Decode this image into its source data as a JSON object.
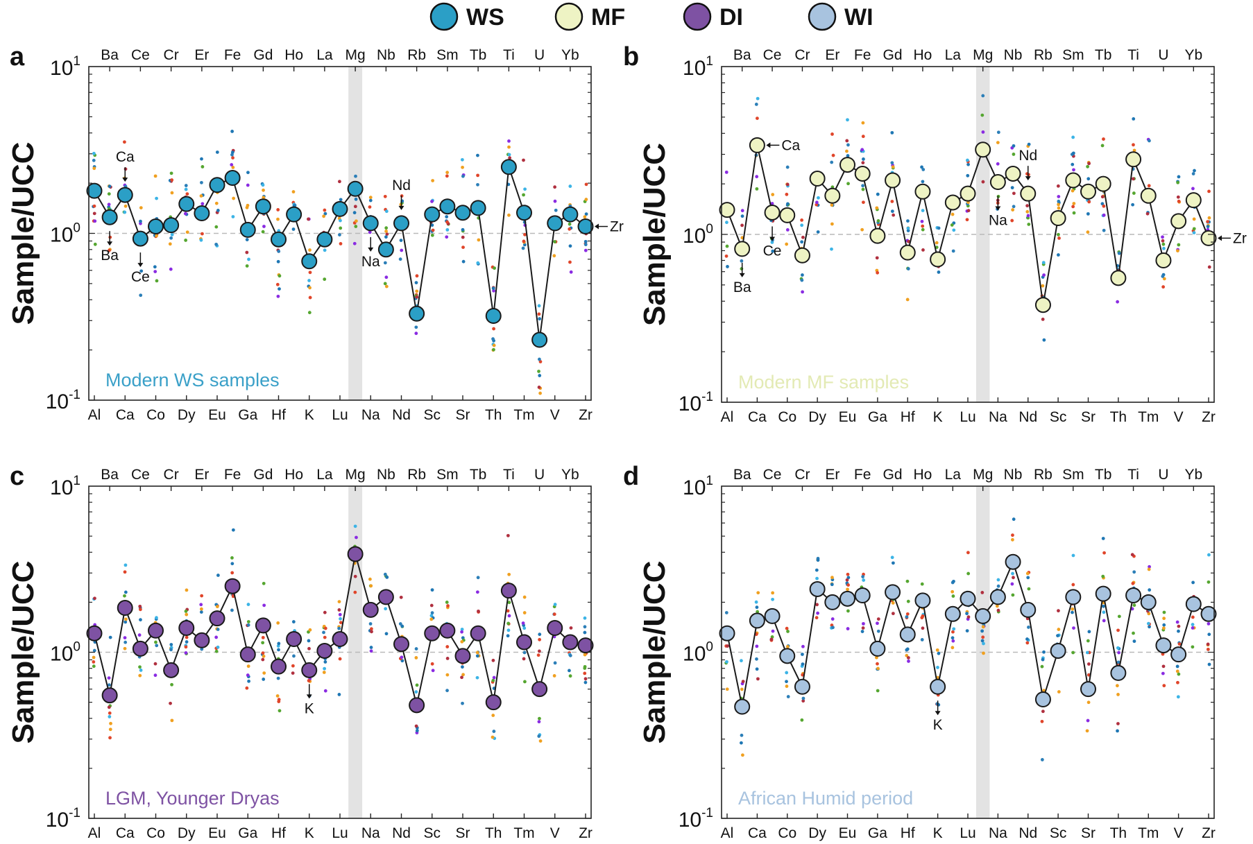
{
  "legend": {
    "items": [
      {
        "label": "WS",
        "color": "#2b9fc6"
      },
      {
        "label": "MF",
        "color": "#eef3c4"
      },
      {
        "label": "DI",
        "color": "#7e52a3"
      },
      {
        "label": "WI",
        "color": "#a8c3df"
      }
    ]
  },
  "ylabel": "Sample/UCC",
  "reference_line": 1,
  "highlight_element": "Mg",
  "element_order": [
    "Al",
    "Ba",
    "Ca",
    "Ce",
    "Co",
    "Cr",
    "Dy",
    "Er",
    "Eu",
    "Fe",
    "Ga",
    "Gd",
    "Hf",
    "Ho",
    "K",
    "La",
    "Lu",
    "Mg",
    "Na",
    "Nb",
    "Nd",
    "Rb",
    "Sc",
    "Sm",
    "Sr",
    "Tb",
    "Th",
    "Ti",
    "Tm",
    "U",
    "V",
    "Yb",
    "Zr"
  ],
  "scatter_colors": [
    "#1f77b4",
    "#f0a020",
    "#e0452a",
    "#55a630",
    "#3cb4e6",
    "#8a2be2",
    "#b0303f",
    "#2c7fb8"
  ],
  "chart_data": [
    {
      "panel": "a",
      "type": "line",
      "yscale": "log",
      "ylim": [
        0.1,
        10
      ],
      "y_ticks": [
        {
          "value": 0.1,
          "base": "10",
          "exp": "-1"
        },
        {
          "value": 1,
          "base": "10",
          "exp": "0"
        },
        {
          "value": 10,
          "base": "10",
          "exp": "1"
        }
      ],
      "bottom_tick_labels": [
        "Al",
        "Ca",
        "Co",
        "Dy",
        "Eu",
        "Ga",
        "Hf",
        "K",
        "Lu",
        "Na",
        "Nd",
        "Sc",
        "Sr",
        "Th",
        "Tm",
        "V",
        "Zr"
      ],
      "top_tick_labels": [
        "Ba",
        "Ce",
        "Cr",
        "Er",
        "Fe",
        "Gd",
        "Ho",
        "La",
        "Mg",
        "Nb",
        "Rb",
        "Sm",
        "Tb",
        "Ti",
        "U",
        "Yb"
      ],
      "series": [
        {
          "name": "WS",
          "color": "#2b9fc6",
          "values": [
            1.8,
            1.25,
            1.7,
            0.93,
            1.1,
            1.12,
            1.5,
            1.32,
            1.95,
            2.15,
            1.05,
            1.45,
            0.92,
            1.3,
            0.68,
            0.92,
            1.4,
            1.85,
            1.15,
            0.8,
            1.15,
            0.33,
            1.3,
            1.45,
            1.33,
            1.42,
            0.32,
            2.5,
            1.33,
            0.23,
            1.15,
            1.3,
            1.1
          ]
        }
      ],
      "text_label": "Modern WS samples",
      "text_color": "#3aa0c8",
      "annotations": [
        {
          "label": "Ca",
          "element": "Ca",
          "dir": "down-above"
        },
        {
          "label": "Ba",
          "element": "Ba",
          "dir": "down-below"
        },
        {
          "label": "Ce",
          "element": "Ce",
          "dir": "down-below"
        },
        {
          "label": "Nd",
          "element": "Nd",
          "dir": "down-above"
        },
        {
          "label": "Na",
          "element": "Na",
          "dir": "down-below"
        },
        {
          "label": "Zr",
          "element": "Zr",
          "dir": "left-right"
        }
      ]
    },
    {
      "panel": "b",
      "type": "line",
      "yscale": "log",
      "ylim": [
        0.1,
        10
      ],
      "y_ticks": [
        {
          "value": 0.1,
          "base": "10",
          "exp": "-1"
        },
        {
          "value": 1,
          "base": "10",
          "exp": "0"
        },
        {
          "value": 10,
          "base": "10",
          "exp": "1"
        }
      ],
      "bottom_tick_labels": [
        "Al",
        "Ca",
        "Co",
        "Dy",
        "Eu",
        "Ga",
        "Hf",
        "K",
        "Lu",
        "Na",
        "Nd",
        "Sc",
        "Sr",
        "Th",
        "Tm",
        "V",
        "Zr"
      ],
      "top_tick_labels": [
        "Ba",
        "Ce",
        "Cr",
        "Er",
        "Fe",
        "Gd",
        "Ho",
        "La",
        "Mg",
        "Nb",
        "Rb",
        "Sm",
        "Tb",
        "Ti",
        "U",
        "Yb"
      ],
      "series": [
        {
          "name": "MF",
          "color": "#eef3c4",
          "values": [
            1.4,
            0.82,
            3.4,
            1.35,
            1.3,
            0.75,
            2.15,
            1.7,
            2.6,
            2.3,
            0.98,
            2.1,
            0.78,
            1.8,
            0.71,
            1.55,
            1.75,
            3.2,
            2.05,
            2.3,
            1.75,
            0.38,
            1.25,
            2.1,
            1.8,
            2.0,
            0.55,
            2.8,
            1.7,
            0.7,
            1.2,
            1.6,
            0.95
          ]
        }
      ],
      "text_label": "Modern MF samples",
      "text_color": "#e3eab4",
      "annotations": [
        {
          "label": "Ca",
          "element": "Ca",
          "dir": "left-right"
        },
        {
          "label": "Ba",
          "element": "Ba",
          "dir": "down-below"
        },
        {
          "label": "Ce",
          "element": "Ce",
          "dir": "down-below"
        },
        {
          "label": "Nd",
          "element": "Nd",
          "dir": "down-above"
        },
        {
          "label": "Na",
          "element": "Na",
          "dir": "down-below"
        },
        {
          "label": "Zr",
          "element": "Zr",
          "dir": "left-right"
        }
      ]
    },
    {
      "panel": "c",
      "type": "line",
      "yscale": "log",
      "ylim": [
        0.1,
        10
      ],
      "y_ticks": [
        {
          "value": 0.1,
          "base": "10",
          "exp": "-1"
        },
        {
          "value": 1,
          "base": "10",
          "exp": "0"
        },
        {
          "value": 10,
          "base": "10",
          "exp": "1"
        }
      ],
      "bottom_tick_labels": [
        "Al",
        "Ca",
        "Co",
        "Dy",
        "Eu",
        "Ga",
        "Hf",
        "K",
        "Lu",
        "Na",
        "Nd",
        "Sc",
        "Sr",
        "Th",
        "Tm",
        "V",
        "Zr"
      ],
      "top_tick_labels": [
        "Ba",
        "Ce",
        "Cr",
        "Er",
        "Fe",
        "Gd",
        "Ho",
        "La",
        "Mg",
        "Nb",
        "Rb",
        "Sm",
        "Tb",
        "Ti",
        "U",
        "Yb"
      ],
      "series": [
        {
          "name": "DI",
          "color": "#7e52a3",
          "values": [
            1.3,
            0.55,
            1.85,
            1.05,
            1.35,
            0.78,
            1.4,
            1.18,
            1.6,
            2.5,
            0.97,
            1.45,
            0.82,
            1.2,
            0.78,
            1.02,
            1.2,
            3.9,
            1.8,
            2.15,
            1.12,
            0.48,
            1.3,
            1.35,
            0.95,
            1.3,
            0.5,
            2.35,
            1.15,
            0.6,
            1.4,
            1.15,
            1.1
          ]
        }
      ],
      "text_label": "LGM, Younger Dryas",
      "text_color": "#7e52a3",
      "annotations": [
        {
          "label": "K",
          "element": "K",
          "dir": "down-below"
        }
      ]
    },
    {
      "panel": "d",
      "type": "line",
      "yscale": "log",
      "ylim": [
        0.1,
        10
      ],
      "y_ticks": [
        {
          "value": 0.1,
          "base": "10",
          "exp": "-1"
        },
        {
          "value": 1,
          "base": "10",
          "exp": "0"
        },
        {
          "value": 10,
          "base": "10",
          "exp": "1"
        }
      ],
      "bottom_tick_labels": [
        "Al",
        "Ca",
        "Co",
        "Dy",
        "Eu",
        "Ga",
        "Hf",
        "K",
        "Lu",
        "Na",
        "Nd",
        "Sc",
        "Sr",
        "Th",
        "Tm",
        "V",
        "Zr"
      ],
      "top_tick_labels": [
        "Ba",
        "Ce",
        "Cr",
        "Er",
        "Fe",
        "Gd",
        "Ho",
        "La",
        "Mg",
        "Nb",
        "Rb",
        "Sm",
        "Tb",
        "Ti",
        "U",
        "Yb"
      ],
      "series": [
        {
          "name": "WI",
          "color": "#a8c3df",
          "values": [
            1.3,
            0.47,
            1.55,
            1.65,
            0.95,
            0.62,
            2.4,
            2.0,
            2.1,
            2.2,
            1.05,
            2.3,
            1.28,
            2.05,
            0.62,
            1.7,
            2.1,
            1.65,
            2.15,
            3.5,
            1.8,
            0.52,
            1.02,
            2.15,
            0.6,
            2.25,
            0.75,
            2.2,
            2.0,
            1.1,
            0.97,
            1.95,
            1.7
          ]
        }
      ],
      "text_label": "African Humid period",
      "text_color": "#a8c3df",
      "annotations": [
        {
          "label": "K",
          "element": "K",
          "dir": "down-below"
        }
      ]
    }
  ]
}
